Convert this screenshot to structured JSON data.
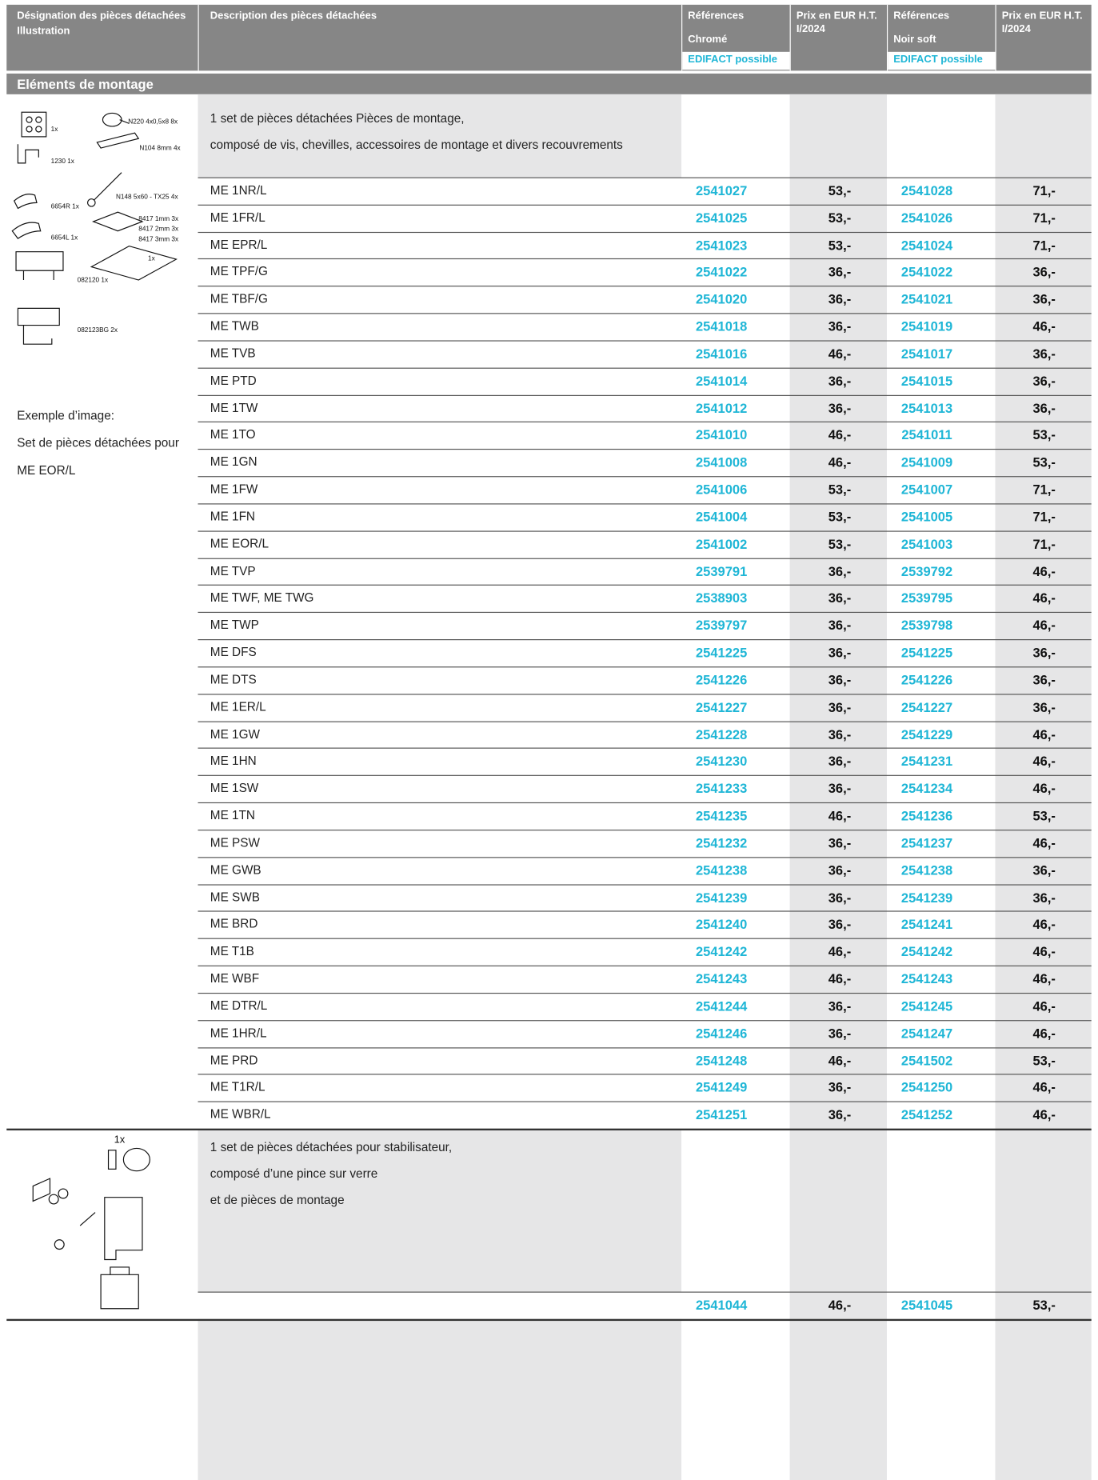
{
  "header": {
    "designation": "Désignation des pièces détachées",
    "illustration": "Illustration",
    "description": "Description des pièces détachées",
    "ref_1": [
      "Références",
      "Chromé"
    ],
    "edifact_1": "EDIFACT possible",
    "prix_1": [
      "Prix en EUR H.T.",
      "I/2024"
    ],
    "ref_2": [
      "Références",
      "Noir soft"
    ],
    "edifact_2": "EDIFACT possible",
    "prix_2": [
      "Prix en EUR H.T.",
      "I/2024"
    ]
  },
  "section": "Eléments de montage",
  "groups": [
    {
      "description": [
        "1 set de pièces détachées Pièces de montage,",
        "composé de vis, chevilles, accessoires de montage et divers recouvrements"
      ],
      "illustration_labels": [
        "1x",
        "N220 4x0,5x8 8x",
        "N104 8mm 4x",
        "1230 1x",
        "N148 5x60 - TX25 4x",
        "6654R 1x",
        "8417 1mm 3x",
        "8417 2mm 3x",
        "8417 3mm 3x",
        "6654L 1x",
        "1x",
        "082120 1x",
        "082123BG 2x"
      ],
      "caption": [
        "Exemple d’image:",
        "Set de pièces détachées pour",
        "ME EOR/L"
      ],
      "rows": [
        [
          "ME 1NR/L",
          "2541027",
          "53,-",
          "2541028",
          "71,-"
        ],
        [
          "ME 1FR/L",
          "2541025",
          "53,-",
          "2541026",
          "71,-"
        ],
        [
          "ME EPR/L",
          "2541023",
          "53,-",
          "2541024",
          "71,-"
        ],
        [
          "ME TPF/G",
          "2541022",
          "36,-",
          "2541022",
          "36,-"
        ],
        [
          "ME TBF/G",
          "2541020",
          "36,-",
          "2541021",
          "36,-"
        ],
        [
          "ME TWB",
          "2541018",
          "36,-",
          "2541019",
          "46,-"
        ],
        [
          "ME TVB",
          "2541016",
          "46,-",
          "2541017",
          "36,-"
        ],
        [
          "ME PTD",
          "2541014",
          "36,-",
          "2541015",
          "36,-"
        ],
        [
          "ME 1TW",
          "2541012",
          "36,-",
          "2541013",
          "36,-"
        ],
        [
          "ME 1TO",
          "2541010",
          "46,-",
          "2541011",
          "53,-"
        ],
        [
          "ME 1GN",
          "2541008",
          "46,-",
          "2541009",
          "53,-"
        ],
        [
          "ME 1FW",
          "2541006",
          "53,-",
          "2541007",
          "71,-"
        ],
        [
          "ME 1FN",
          "2541004",
          "53,-",
          "2541005",
          "71,-"
        ],
        [
          "ME EOR/L",
          "2541002",
          "53,-",
          "2541003",
          "71,-"
        ],
        [
          "ME TVP",
          "2539791",
          "36,-",
          "2539792",
          "46,-"
        ],
        [
          "ME TWF, ME TWG",
          "2538903",
          "36,-",
          "2539795",
          "46,-"
        ],
        [
          "ME TWP",
          "2539797",
          "36,-",
          "2539798",
          "46,-"
        ],
        [
          "ME DFS",
          "2541225",
          "36,-",
          "2541225",
          "36,-"
        ],
        [
          "ME DTS",
          "2541226",
          "36,-",
          "2541226",
          "36,-"
        ],
        [
          "ME 1ER/L",
          "2541227",
          "36,-",
          "2541227",
          "36,-"
        ],
        [
          "ME 1GW",
          "2541228",
          "36,-",
          "2541229",
          "46,-"
        ],
        [
          "ME 1HN",
          "2541230",
          "36,-",
          "2541231",
          "46,-"
        ],
        [
          "ME 1SW",
          "2541233",
          "36,-",
          "2541234",
          "46,-"
        ],
        [
          "ME 1TN",
          "2541235",
          "46,-",
          "2541236",
          "53,-"
        ],
        [
          "ME PSW",
          "2541232",
          "36,-",
          "2541237",
          "46,-"
        ],
        [
          "ME GWB",
          "2541238",
          "36,-",
          "2541238",
          "36,-"
        ],
        [
          "ME SWB",
          "2541239",
          "36,-",
          "2541239",
          "36,-"
        ],
        [
          "ME BRD",
          "2541240",
          "36,-",
          "2541241",
          "46,-"
        ],
        [
          "ME T1B",
          "2541242",
          "46,-",
          "2541242",
          "46,-"
        ],
        [
          "ME WBF",
          "2541243",
          "46,-",
          "2541243",
          "46,-"
        ],
        [
          "ME DTR/L",
          "2541244",
          "36,-",
          "2541245",
          "46,-"
        ],
        [
          "ME 1HR/L",
          "2541246",
          "36,-",
          "2541247",
          "46,-"
        ],
        [
          "ME PRD",
          "2541248",
          "46,-",
          "2541502",
          "53,-"
        ],
        [
          "ME T1R/L",
          "2541249",
          "36,-",
          "2541250",
          "46,-"
        ],
        [
          "ME WBR/L",
          "2541251",
          "36,-",
          "2541252",
          "46,-"
        ]
      ]
    },
    {
      "description": [
        "1 set de pièces détachées pour stabilisateur,",
        "composé d’une pince sur verre",
        "et de pièces de montage"
      ],
      "illustration_labels": [
        "1x"
      ],
      "rows": [
        [
          null,
          "2541044",
          "46,-",
          "2541045",
          "53,-"
        ]
      ]
    }
  ]
}
